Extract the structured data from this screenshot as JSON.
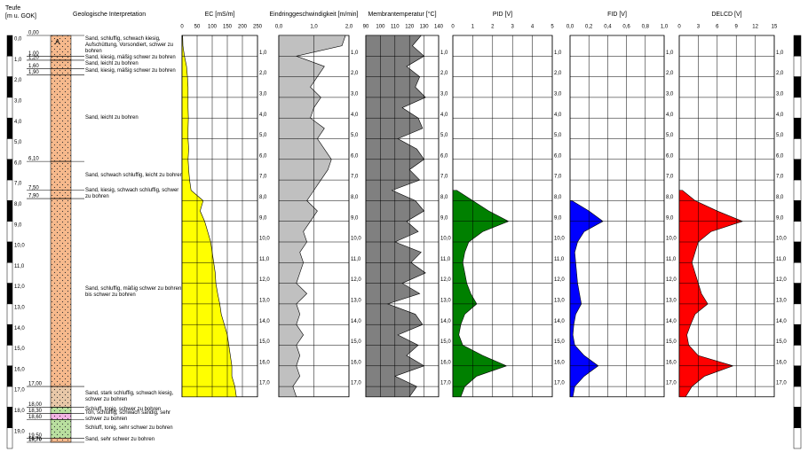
{
  "chart_data": {
    "type": "well-log",
    "depth_title": "Teufe",
    "depth_unit": "[m u. GOK]",
    "geology_title": "Geologische Interpretation",
    "ruler_lim": [
      0,
      20
    ],
    "ylim": [
      0,
      17.5
    ],
    "depth_ticks": [
      {
        "value": 0,
        "label": "0,0"
      },
      {
        "value": 1,
        "label": "1,0"
      },
      {
        "value": 2,
        "label": "2,0"
      },
      {
        "value": 3,
        "label": "3,0"
      },
      {
        "value": 4,
        "label": "4,0"
      },
      {
        "value": 5,
        "label": "5,0"
      },
      {
        "value": 6,
        "label": "6,0"
      },
      {
        "value": 7,
        "label": "7,0"
      },
      {
        "value": 8,
        "label": "8,0"
      },
      {
        "value": 9,
        "label": "9,0"
      },
      {
        "value": 10,
        "label": "10,0"
      },
      {
        "value": 11,
        "label": "11,0"
      },
      {
        "value": 12,
        "label": "12,0"
      },
      {
        "value": 13,
        "label": "13,0"
      },
      {
        "value": 14,
        "label": "14,0"
      },
      {
        "value": 15,
        "label": "15,0"
      },
      {
        "value": 16,
        "label": "16,0"
      },
      {
        "value": 17,
        "label": "17,0"
      },
      {
        "value": 18,
        "label": "18,0"
      },
      {
        "value": 19,
        "label": "19,0"
      }
    ],
    "boundaries": [
      {
        "value": 0,
        "label": "0,00"
      },
      {
        "value": 1.0,
        "label": "1,00"
      },
      {
        "value": 1.2,
        "label": "1,20"
      },
      {
        "value": 1.6,
        "label": "1,60"
      },
      {
        "value": 1.9,
        "label": "1,90"
      },
      {
        "value": 6.1,
        "label": "6,10"
      },
      {
        "value": 7.5,
        "label": "7,50"
      },
      {
        "value": 7.9,
        "label": "7,90"
      },
      {
        "value": 17.0,
        "label": "17,00"
      },
      {
        "value": 18.0,
        "label": "18,00"
      },
      {
        "value": 18.3,
        "label": "18,30"
      },
      {
        "value": 18.6,
        "label": "18,60"
      },
      {
        "value": 19.5,
        "label": "19,50"
      },
      {
        "value": 19.7,
        "label": "19,70"
      }
    ],
    "layers": [
      {
        "description": "Sand, schluffig, schwach kiesig, Aufschüttung, Vorsondiert, schwer zu bohren",
        "color": "#f6b98c",
        "symbol": "A"
      },
      {
        "description": "Sand, kiesig, mäßig schwer zu bohren",
        "color": "#f6b98c"
      },
      {
        "description": "Sand, leicht zu bohren",
        "color": "#f6b98c"
      },
      {
        "description": "Sand, kiesig, mäßig schwer zu bohren",
        "color": "#f6b98c"
      },
      {
        "description": "Sand, leicht zu bohren",
        "color": "#f6b98c"
      },
      {
        "description": "Sand, schwach schluffig, leicht zu bohren",
        "color": "#f6b98c"
      },
      {
        "description": "Sand, kiesig, schwach schluffig, schwer zu bohren",
        "color": "#f6b98c"
      },
      {
        "description": "Sand, schluffig, mäßig schwer zu bohren bis schwer zu bohren",
        "color": "#f6b98c"
      },
      {
        "description": "Sand, stark schluffig, schwach kiesig, schwer zu bohren",
        "color": "#e8c8a8"
      },
      {
        "description": "Schluff, tonig, schwer zu bohren",
        "color": "#b9df9f"
      },
      {
        "description": "Ton, schluffig, schwach sandig, sehr schwer zu bohren",
        "color": "#f2b3e4"
      },
      {
        "description": "Schluff, tonig, sehr schwer zu bohren",
        "color": "#b9df9f"
      },
      {
        "description": "Sand, sehr schwer zu bohren",
        "color": "#f6b98c"
      }
    ],
    "depth": [
      0,
      0.5,
      1,
      1.5,
      2,
      2.5,
      3,
      3.5,
      4,
      4.5,
      5,
      5.5,
      6,
      6.5,
      7,
      7.5,
      8,
      8.5,
      9,
      9.5,
      10,
      10.5,
      11,
      11.5,
      12,
      12.5,
      13,
      13.5,
      14,
      14.5,
      15,
      15.5,
      16,
      16.5,
      17,
      17.5
    ],
    "tracks": [
      {
        "title": "EC [mS/m]",
        "xlim": [
          0,
          250
        ],
        "xticks": [
          0,
          50,
          100,
          150,
          200,
          250
        ],
        "color": "#ffff00",
        "values": [
          2,
          3,
          8,
          15,
          18,
          20,
          20,
          20,
          21,
          20,
          20,
          22,
          20,
          22,
          25,
          30,
          70,
          60,
          75,
          85,
          95,
          100,
          105,
          110,
          112,
          118,
          125,
          130,
          140,
          150,
          155,
          160,
          165,
          165,
          175,
          180
        ]
      },
      {
        "title": "Eindringgeschwindigkeit [m/min]",
        "xlim": [
          0,
          2
        ],
        "xticks": [
          {
            "value": 0,
            "label": "0,0"
          },
          {
            "value": 1,
            "label": "1,0"
          },
          {
            "value": 2,
            "label": "2,0"
          }
        ],
        "color": "#c0c0c0",
        "values": [
          1.9,
          1.8,
          0.5,
          1.3,
          1.1,
          0.9,
          1.2,
          1.0,
          0.9,
          1.3,
          1.1,
          1.3,
          1.5,
          1.4,
          1.2,
          1.0,
          0.8,
          1.1,
          0.9,
          0.7,
          0.8,
          0.6,
          0.7,
          0.6,
          0.5,
          0.8,
          0.5,
          0.6,
          0.5,
          0.7,
          0.5,
          0.6,
          0.5,
          0.6,
          0.4,
          0.5
        ]
      },
      {
        "title": "Membrantemperatur [°C]",
        "xlim": [
          90,
          140
        ],
        "xticks": [
          90,
          100,
          110,
          120,
          130,
          140
        ],
        "color": "#808080",
        "values": [
          128,
          122,
          130,
          118,
          127,
          124,
          131,
          115,
          126,
          129,
          112,
          125,
          130,
          120,
          127,
          108,
          124,
          130,
          118,
          126,
          110,
          128,
          121,
          131,
          115,
          127,
          105,
          124,
          129,
          112,
          126,
          118,
          130,
          110,
          125,
          120
        ]
      },
      {
        "title": "PID  [V]",
        "xlim": [
          0,
          5
        ],
        "xticks": [
          0,
          1,
          2,
          3,
          4,
          5
        ],
        "color": "#008000",
        "values": [
          null,
          null,
          null,
          null,
          null,
          null,
          null,
          null,
          null,
          null,
          null,
          null,
          null,
          null,
          null,
          0.2,
          1.0,
          1.8,
          2.8,
          1.5,
          0.8,
          0.6,
          0.5,
          0.6,
          0.7,
          0.9,
          1.2,
          0.6,
          0.4,
          0.3,
          0.5,
          1.5,
          2.7,
          1.2,
          0.6,
          0.4
        ]
      },
      {
        "title": "FID  [V]",
        "xlim": [
          0,
          1
        ],
        "xticks": [
          {
            "value": 0,
            "label": "0,0"
          },
          {
            "value": 0.2,
            "label": "0,2"
          },
          {
            "value": 0.4,
            "label": "0,4"
          },
          {
            "value": 0.6,
            "label": "0,6"
          },
          {
            "value": 0.8,
            "label": "0,8"
          },
          {
            "value": 1,
            "label": "1,0"
          }
        ],
        "color": "#0000ff",
        "values": [
          null,
          null,
          null,
          null,
          null,
          null,
          null,
          null,
          null,
          null,
          null,
          null,
          null,
          null,
          null,
          null,
          0.02,
          0.2,
          0.35,
          0.15,
          0.08,
          0.05,
          0.06,
          0.07,
          0.08,
          0.1,
          0.12,
          0.06,
          0.04,
          0.03,
          0.05,
          0.15,
          0.3,
          0.15,
          0.05,
          0.03
        ]
      },
      {
        "title": "DELCD  [V]",
        "xlim": [
          0,
          15
        ],
        "xticks": [
          0,
          3,
          6,
          9,
          12,
          15
        ],
        "color": "#ff0000",
        "values": [
          null,
          null,
          null,
          null,
          null,
          null,
          null,
          null,
          null,
          null,
          null,
          null,
          null,
          null,
          null,
          0.5,
          2.5,
          6,
          10,
          5,
          3,
          2.5,
          2,
          2.5,
          3,
          3.5,
          4.5,
          2.5,
          1.8,
          1.2,
          1.5,
          3,
          8.5,
          4,
          2,
          1
        ]
      }
    ]
  }
}
